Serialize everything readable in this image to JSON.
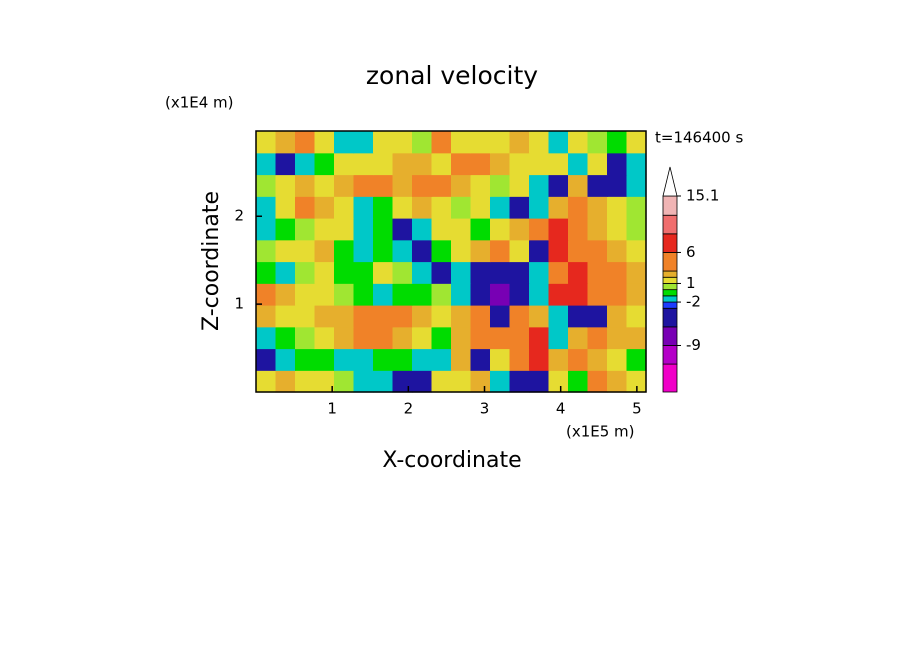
{
  "chart_data": {
    "type": "contour",
    "title": "zonal velocity",
    "x_label": "X-coordinate",
    "y_label": "Z-coordinate",
    "x_unit_label": "(x1E5 m)",
    "y_unit_label": "(x1E4 m)",
    "annotation": "t=146400 s",
    "xlim": [
      0,
      5.12
    ],
    "ylim": [
      0,
      2.97
    ],
    "xticks": [
      1,
      2,
      3,
      4,
      5
    ],
    "yticks": [
      1,
      2
    ],
    "colorbar": {
      "levels": [
        -16.5,
        -12,
        -9,
        -6,
        -3,
        -2,
        -1,
        0,
        1,
        2,
        3,
        6,
        9,
        12,
        15.1
      ],
      "colors": [
        "#f000c8",
        "#b400c8",
        "#7800b4",
        "#1e14a0",
        "#1e3cff",
        "#00c8c8",
        "#00dc00",
        "#a0e632",
        "#e6dc32",
        "#e6af2d",
        "#f08228",
        "#e6281e",
        "#f06e6e",
        "#f0b4b4"
      ],
      "ticks": [
        15.1,
        6,
        1,
        -2,
        -9
      ]
    },
    "field": {
      "x": [
        0.128,
        0.384,
        0.64,
        0.896,
        1.152,
        1.408,
        1.664,
        1.92,
        2.176,
        2.432,
        2.688,
        2.944,
        3.2,
        3.456,
        3.712,
        3.968,
        4.224,
        4.48,
        4.736,
        4.992
      ],
      "y": [
        0.124,
        0.371,
        0.619,
        0.866,
        1.114,
        1.361,
        1.609,
        1.856,
        2.104,
        2.351,
        2.599,
        2.846
      ],
      "values": [
        [
          1.5,
          2.5,
          1.5,
          1.5,
          0.5,
          -1.5,
          -1.5,
          -4,
          -4,
          1.5,
          1.5,
          2.5,
          -1.5,
          -4,
          -4,
          1.5,
          -0.5,
          4,
          2.5,
          1.5
        ],
        [
          -4,
          -1.5,
          -0.5,
          -0.5,
          -1.5,
          -1.5,
          -0.5,
          -0.5,
          -1.5,
          -1.5,
          2.5,
          -4,
          1.5,
          4,
          7.5,
          2.5,
          4,
          2.5,
          1.5,
          -0.5
        ],
        [
          -1.5,
          -0.5,
          0.5,
          1.5,
          2.5,
          4,
          4,
          2.5,
          1.5,
          -0.5,
          2.5,
          4,
          4,
          4,
          7.5,
          -1.5,
          2.5,
          4,
          2.5,
          2.5
        ],
        [
          2.5,
          1.5,
          1.5,
          2.5,
          2.5,
          4,
          4,
          4,
          2.5,
          1.5,
          2.5,
          4,
          -4,
          4,
          2.5,
          -1.5,
          -4,
          -4,
          2.5,
          1.5
        ],
        [
          4,
          2.5,
          1.5,
          1.5,
          0.5,
          -0.5,
          -1.5,
          -0.5,
          -0.5,
          0.5,
          -1.5,
          -4.5,
          -7,
          -4.5,
          -1.5,
          7.5,
          7.5,
          4,
          4,
          2.5
        ],
        [
          -0.5,
          -1.5,
          0.5,
          1.5,
          -0.5,
          -0.5,
          1.5,
          0.5,
          -1.5,
          -4,
          -1.5,
          -4.5,
          -4.5,
          -4,
          -1.5,
          4,
          7.5,
          4,
          4,
          2.5
        ],
        [
          0.5,
          1.5,
          1.5,
          2.5,
          -0.5,
          -1.5,
          -0.5,
          -1.5,
          -4,
          -0.5,
          1.5,
          2.5,
          4,
          1.5,
          -4,
          7.5,
          4,
          4,
          2.5,
          1.5
        ],
        [
          -1.5,
          -0.5,
          0.5,
          1.5,
          1.5,
          -1.5,
          -0.5,
          -4,
          -1.5,
          1.5,
          1.5,
          -0.5,
          1.5,
          2.5,
          4,
          7.5,
          4,
          2.5,
          1.5,
          0.5
        ],
        [
          -1.5,
          1.5,
          4,
          2.5,
          1.5,
          -1.5,
          -0.5,
          1.5,
          2.5,
          1.5,
          0.5,
          1.5,
          -1.5,
          -4,
          -1.5,
          2.5,
          4,
          2.5,
          1.5,
          0.5
        ],
        [
          0.5,
          1.5,
          2.5,
          1.5,
          2.5,
          4,
          4,
          2.5,
          4,
          4,
          2.5,
          1.5,
          0.5,
          1.5,
          -1.5,
          -4,
          2.5,
          -4,
          -4,
          -1.5
        ],
        [
          -1.5,
          -4,
          -1.5,
          -0.5,
          1.5,
          1.5,
          1.5,
          2.5,
          2.5,
          1.5,
          4,
          4,
          2.5,
          1.5,
          1.5,
          1.5,
          -1.5,
          1.5,
          -4,
          -1.5
        ],
        [
          1.5,
          2.5,
          4,
          1.5,
          -1.5,
          -1.5,
          1.5,
          1.5,
          0.5,
          4,
          1.5,
          1.5,
          1.5,
          2.5,
          1.5,
          -1.5,
          1.5,
          0.5,
          -0.5,
          1.5
        ]
      ]
    }
  }
}
